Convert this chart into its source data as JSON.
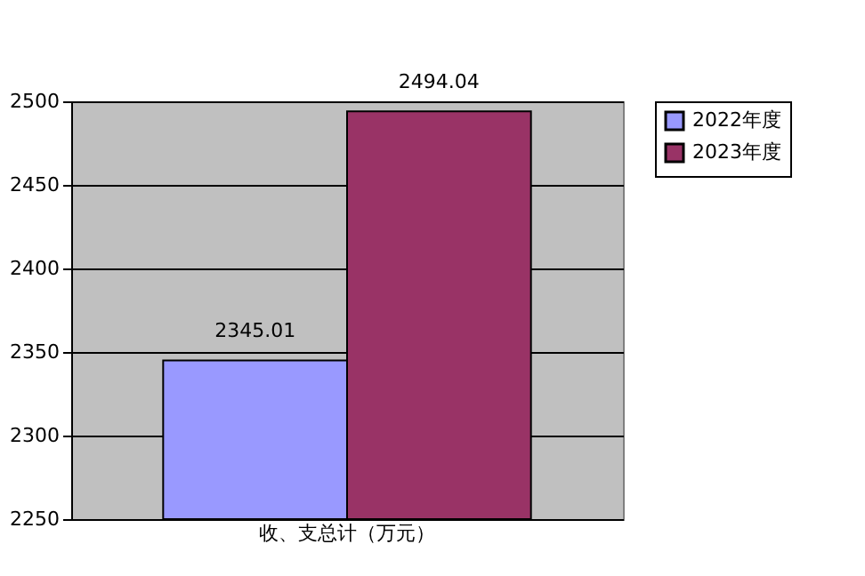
{
  "chart_data": {
    "type": "bar",
    "categories": [
      "收、支总计（万元）"
    ],
    "series": [
      {
        "name": "2022年度",
        "color": "#9999ff",
        "values": [
          2345.01
        ]
      },
      {
        "name": "2023年度",
        "color": "#993366",
        "values": [
          2494.04
        ]
      }
    ],
    "ylim": [
      2250,
      2500
    ],
    "yticks": [
      2250,
      2300,
      2350,
      2400,
      2450,
      2500
    ],
    "grid": "y",
    "legend": "right",
    "data_labels": true
  }
}
